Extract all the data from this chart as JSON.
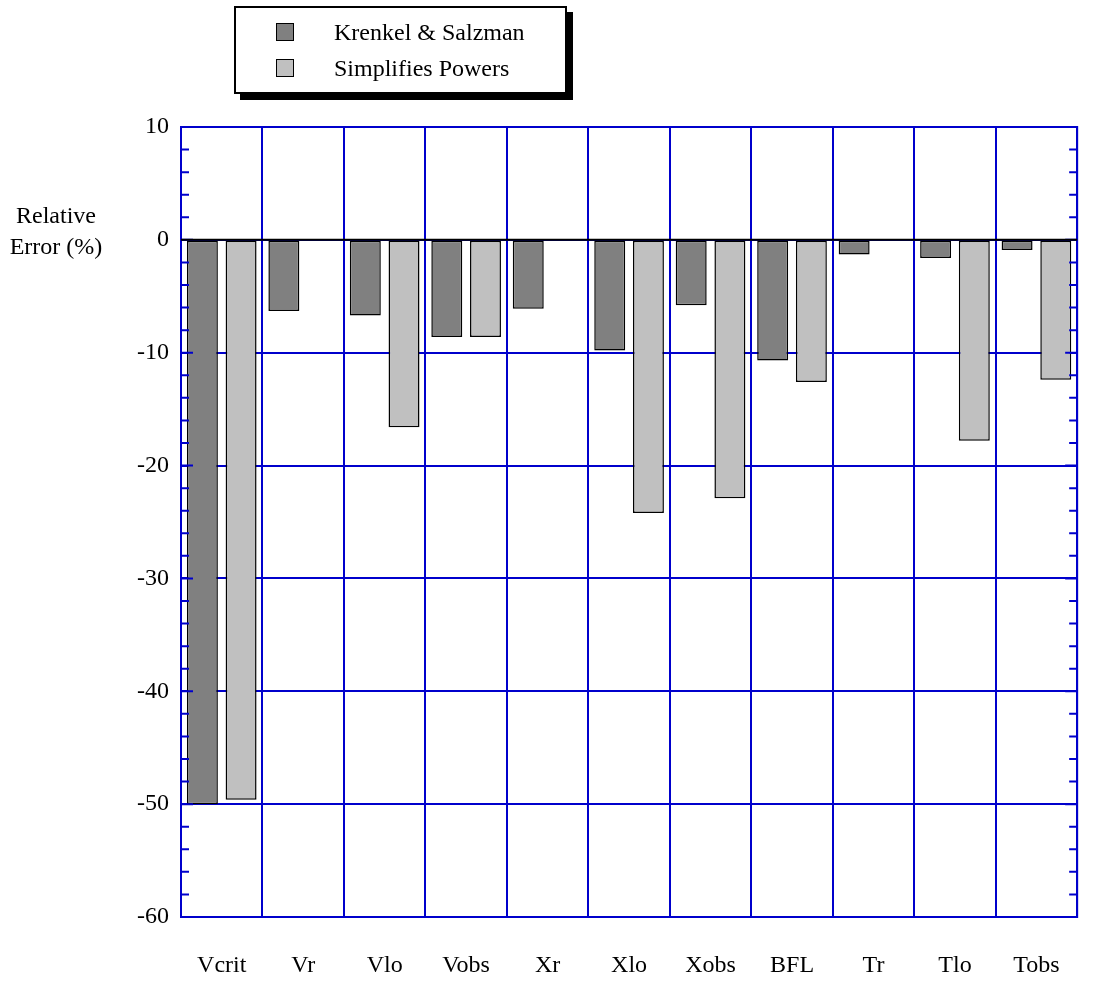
{
  "chart_data": {
    "type": "bar",
    "ylabel": "Relative Error (%)",
    "categories": [
      "Vcrit",
      "Vr",
      "Vlo",
      "Vobs",
      "Xr",
      "Xlo",
      "Xobs",
      "BFL",
      "Tr",
      "Tlo",
      "Tobs"
    ],
    "series": [
      {
        "name": "Krenkel & Salzman",
        "color": "#808080",
        "values": [
          -50,
          -6.3,
          -6.7,
          -8.6,
          -6.1,
          -9.8,
          -5.8,
          -10.7,
          -1.3,
          -1.6,
          -0.9
        ]
      },
      {
        "name": "Simplifies Powers",
        "color": "#c0c0c0",
        "values": [
          -49.6,
          null,
          -16.6,
          -8.6,
          null,
          -24.2,
          -22.9,
          -12.6,
          null,
          -17.8,
          -12.4
        ]
      }
    ],
    "ylim": [
      -60,
      10
    ],
    "yticks": [
      -60,
      {
        "value": -58,
        "label": null
      },
      {
        "value": -56,
        "label": null
      },
      {
        "value": -54,
        "label": null
      },
      {
        "value": -52,
        "label": null
      },
      -50,
      {
        "value": -48,
        "label": null
      },
      {
        "value": -46,
        "label": null
      },
      {
        "value": -44,
        "label": null
      },
      {
        "value": -42,
        "label": null
      },
      -40,
      {
        "value": -38,
        "label": null
      },
      {
        "value": -36,
        "label": null
      },
      {
        "value": -34,
        "label": null
      },
      {
        "value": -32,
        "label": null
      },
      -30,
      {
        "value": -28,
        "label": null
      },
      {
        "value": -26,
        "label": null
      },
      {
        "value": -24,
        "label": null
      },
      {
        "value": -22,
        "label": null
      },
      -20,
      {
        "value": -18,
        "label": null
      },
      {
        "value": -16,
        "label": null
      },
      {
        "value": -14,
        "label": null
      },
      {
        "value": -12,
        "label": null
      },
      -10,
      {
        "value": -8,
        "label": null
      },
      {
        "value": -6,
        "label": null
      },
      {
        "value": -4,
        "label": null
      },
      {
        "value": -2,
        "label": null
      },
      0,
      {
        "value": 2,
        "label": null
      },
      {
        "value": 4,
        "label": null
      },
      {
        "value": 6,
        "label": null
      },
      {
        "value": 8,
        "label": null
      },
      10
    ],
    "ref_lines": [
      {
        "axis": "y",
        "value": 0,
        "color": "#000000"
      }
    ],
    "grid": true,
    "legend": "top left"
  }
}
